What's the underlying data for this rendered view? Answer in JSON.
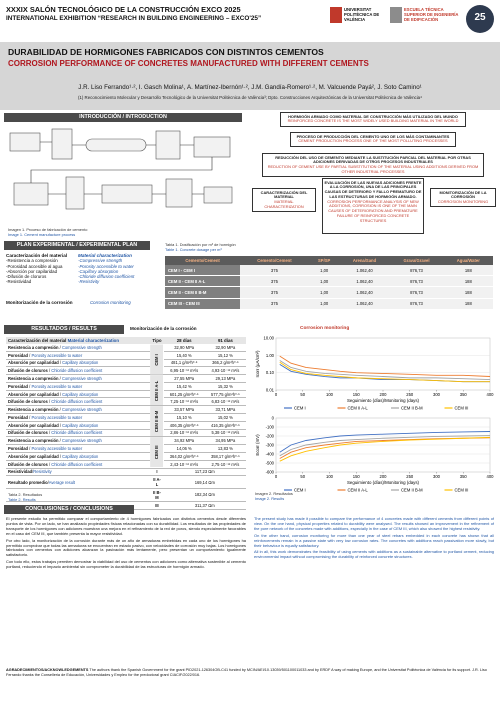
{
  "header": {
    "line1": "XXXIX SALÓN TECNOLÓGICO DE LA CONSTRUCCIÓN EXCO 2025",
    "line2": "INTERNATIONAL EXHIBITION “RESEARCH IN BUILDING ENGINEERING – EXCO'25”",
    "logo_upv": "UNIVERSITAT POLITÈCNICA DE VALÈNCIA",
    "logo_school": "ESCUELA TÉCNICA SUPERIOR DE INGENIERÍA DE EDIFICACIÓN",
    "logo_badge": "25"
  },
  "title": {
    "es": "DURABILIDAD DE HORMIGONES FABRICADOS CON DISTINTOS CEMENTOS",
    "en": "CORROSION PERFORMANCE OF CONCRETES MANUFACTURED WITH DIFFERENT CEMENTS"
  },
  "authors": "J.R. Liso Ferrando¹·², I. Gasch Molina¹, A. Martínez-Ibernón¹·², J.M. Gandía-Romero¹·², M. Valcuende Payá², J. Soto Camino¹",
  "affiliations": "(1) Reconocimiento Molecular y Desarrollo Tecnológico de la Universitat Politècnica de València³; Dpto. Construcciones Arquitectónicas de la Universitat Politècnica de València⁴",
  "introduction": {
    "heading": "INTRODUCCIÓN / INTRODUCTION",
    "caption_es": "Imagen 1. Proceso de fabricación de cemento",
    "caption_en": "Image 1. Cement manufacture process",
    "flow": [
      {
        "es": "HORMIGÓN ARMADO COMO MATERIAL DE CONSTRUCCIÓN MÁS UTILIZADO DEL MUNDO",
        "en": "REINFORCED CONCRETE IS THE MOST WIDELY USED BUILDING MATERIAL IN THE WORLD"
      },
      {
        "es": "PROCESO DE PRODUCCIÓN DEL CEMENTO UNO DE LOS MÁS CONTAMINANTES",
        "en": "CEMENT PRODUCTION PROCESS ONE OF THE MOST POLLUTING PROCESSES"
      },
      {
        "es": "REDUCCIÓN DEL USO DE CEMENTO MEDIANTE LA SUSTITUCIÓN PARCIAL DEL MATERIAL POR OTRAS ADICIONES DERIVADAS DE OTROS PROCESOS INDUSTRIALES",
        "en": "REDUCTION OF CEMENT USE BY PARTIAL SUBSTITUTION OF THE MATERIAL USING ADDITIONS DERIVED FROM OTHER INDUSTRIAL PROCESSES"
      },
      {
        "es": "EVALUACIÓN DE LAS NUEVAS ADICIONES FRENTE A LA CORROSIÓN, UNA DE LAS PRINCIPALES CAUSAS DE DETERIORO Y FALLO PREMATURO DE LAS ESTRUCTURAS DE HORMIGÓN ARMADO.",
        "en": "CORROSION PERFORMANCE ANALYSIS OF NEW ADDITIONS, CORROSION IS ONE OF THE MAIN CAUSES OF DETERIORATION AND PREMATURE FAILURE OF REINFORCED CONCRETE STRUCTURES"
      }
    ],
    "branch_left": {
      "es": "CARACTERIZACIÓN DEL MATERIAL",
      "en": "MATERIAL CHARACTERIZATION"
    },
    "branch_right": {
      "es": "MONITORIZACIÓN DE LA CORROSIÓN",
      "en": "CORROSION MONITORING"
    }
  },
  "plan": {
    "heading": "PLAN EXPERIMENTAL / EXPERIMENTAL PLAN",
    "char_title_es": "Caracterización del material",
    "char_title_en": "Material characterization",
    "items_es": [
      "-Resistencia a compresión",
      "-Porosidad accesible al agua",
      "-Absorción por capilaridad",
      "-Difusión de cloruros",
      "-Resistividad"
    ],
    "items_en": [
      "-Compressive strength",
      "-Porosity accessible to water",
      "-Capillary absorption",
      "-Chloride diffusion coefficient",
      "-Resistivity"
    ],
    "monitoring_es": "Monitorización de la corrosión",
    "monitoring_en": "Corrosion monitoring",
    "table": {
      "caption_es": "Tabla 1. Dosificación por m³ de hormigón",
      "caption_en": "Table 1. Concrete dosage per m³",
      "columns": [
        "Cemento/Cement",
        "Cemento/Cement",
        "SP/SP",
        "Arena/Sand",
        "Grava/Gravel",
        "Agua/Water"
      ],
      "rows": [
        [
          "CEM I - CEM I",
          "375",
          "1,00",
          "1.062,40",
          "876,73",
          "188"
        ],
        [
          "CEM II - CEM II A-L",
          "375",
          "1,00",
          "1.062,40",
          "876,73",
          "188"
        ],
        [
          "CEM II - CEM II B-M",
          "375",
          "1,00",
          "1.062,40",
          "876,73",
          "188"
        ],
        [
          "CEM III - CEM III",
          "375",
          "1,00",
          "1.062,40",
          "876,73",
          "188"
        ]
      ]
    }
  },
  "results": {
    "heading": "RESULTADOS / RESULTS",
    "table": {
      "head_es": "Caracterización del material",
      "head_en": "Material characterization",
      "col_type": "Tipo",
      "col_28": "28 días",
      "col_91": "91 días",
      "groups": [
        {
          "type": "CEM I",
          "rows": [
            {
              "es": "Resistencia a compresión",
              "en": "Compressive strength",
              "d28": "32,90 MPa",
              "d91": "32,90 MPa"
            },
            {
              "es": "Porosidad",
              "en": "Porosity accessible to water",
              "d28": "15,40 %",
              "d91": "15,12 %"
            },
            {
              "es": "Absorción por capilaridad",
              "en": "Capillary absorption",
              "d28": "481,1 g/m²h⁰·⁵",
              "d91": "366,2 g/m²h⁰·⁵"
            },
            {
              "es": "Difusión de cloruros",
              "en": "Chloride diffusion coefficient",
              "d28": "6,95·10⁻¹² m²/s",
              "d91": "4,93·10⁻¹² m²/s"
            }
          ]
        },
        {
          "type": "CEM II A-L",
          "rows": [
            {
              "es": "Resistencia a compresión",
              "en": "Compressive strength",
              "d28": "27,55 MPa",
              "d91": "29,13 MPa"
            },
            {
              "es": "Porosidad",
              "en": "Porosity accessible to water",
              "d28": "15,42 %",
              "d91": "15,32 %"
            },
            {
              "es": "Absorción por capilaridad",
              "en": "Capillary absorption",
              "d28": "601,25 g/m²h⁰·⁵",
              "d91": "577,75 g/m²h⁰·⁵"
            },
            {
              "es": "Difusión de cloruros",
              "en": "Chloride diffusion coefficient",
              "d28": "7,25·10⁻¹² m²/s",
              "d91": "6,83·10⁻¹² m²/s"
            }
          ]
        },
        {
          "type": "CEM II B-M",
          "rows": [
            {
              "es": "Resistencia a compresión",
              "en": "Compressive strength",
              "d28": "33,57 MPa",
              "d91": "33,71 MPa"
            },
            {
              "es": "Porosidad",
              "en": "Porosity accessible to water",
              "d28": "15,10 %",
              "d91": "15,02 %"
            },
            {
              "es": "Absorción por capilaridad",
              "en": "Capillary absorption",
              "d28": "406,35 g/m²h⁰·⁵",
              "d91": "416,35 g/m²h⁰·⁵"
            },
            {
              "es": "Difusión de cloruros",
              "en": "Chloride diffusion coefficient",
              "d28": "2,86·10⁻¹² m²/s",
              "d91": "5,38·10⁻¹² m²/s"
            }
          ]
        },
        {
          "type": "CEM III",
          "rows": [
            {
              "es": "Resistencia a compresión",
              "en": "Compressive strength",
              "d28": "34,92 MPa",
              "d91": "34,95 MPa"
            },
            {
              "es": "Porosidad",
              "en": "Porosity accessible to water",
              "d28": "14,06 %",
              "d91": "13,83 %"
            },
            {
              "es": "Absorción por capilaridad",
              "en": "Capillary absorption",
              "d28": "364,02 g/m²h⁰·⁵",
              "d91": "358,17 g/m²h⁰·⁵"
            },
            {
              "es": "Difusión de cloruros",
              "en": "Chloride diffusion coefficient",
              "d28": "2,43·10⁻¹² m²/s",
              "d91": "2,75·10⁻¹² m²/s"
            }
          ]
        }
      ],
      "resistivity_es": "Resistividad",
      "resistivity_en": "Resistivity",
      "average_es": "Resultado promedio",
      "average_en": "Average result",
      "resistivity": [
        {
          "type": "I",
          "value": "117,23 Ωm"
        },
        {
          "type": "II A-L",
          "value": "169,14 Ωm"
        },
        {
          "type": "II B-M",
          "value": "182,34 Ωm"
        },
        {
          "type": "III",
          "value": "311,37 Ωm"
        }
      ]
    },
    "table_caption_es": "Tabla 2. Resultados",
    "table_caption_en": "Table 2. Results",
    "monitoring_es": "Monitorización de la corrosión",
    "monitoring_en": "Corrosion monitoring",
    "image_caption_es": "Imagen 2. Resultados",
    "image_caption_en": "Image 2. Results",
    "charts": [
      {
        "type": "line",
        "y_label": "Icorr (µA/cm²)",
        "x_label": "Seguimiento (días)/Monitoring (days)",
        "log_y": true,
        "grid": true,
        "x": [
          7,
          28,
          56,
          91,
          120,
          150,
          200,
          250,
          300,
          350,
          400
        ],
        "xlim": [
          0,
          400
        ],
        "xticks": [
          0,
          50,
          100,
          150,
          200,
          250,
          300,
          350,
          400
        ],
        "ylim": [
          0.01,
          10
        ],
        "yticks": [
          {
            "value": 0.01,
            "label": "0.01"
          },
          {
            "value": 0.1,
            "label": "0.10"
          },
          {
            "value": 1,
            "label": "1.00"
          },
          {
            "value": 10,
            "label": "10.00"
          }
        ],
        "series": [
          {
            "name": "CEM I",
            "color": "#4472c4",
            "values": [
              0.3,
              0.12,
              0.08,
              0.06,
              0.05,
              0.05,
              0.04,
              0.04,
              0.035,
              0.03,
              0.03
            ]
          },
          {
            "name": "CEM II A-L",
            "color": "#ed7d31",
            "values": [
              0.9,
              0.35,
              0.2,
              0.15,
              0.12,
              0.1,
              0.09,
              0.08,
              0.07,
              0.07,
              0.06
            ]
          },
          {
            "name": "CEM II B-M",
            "color": "#a5a5a5",
            "values": [
              0.5,
              0.2,
              0.12,
              0.09,
              0.08,
              0.07,
              0.06,
              0.05,
              0.05,
              0.045,
              0.04
            ]
          },
          {
            "name": "CEM III",
            "color": "#ffc000",
            "values": [
              0.4,
              0.15,
              0.09,
              0.07,
              0.06,
              0.05,
              0.045,
              0.04,
              0.035,
              0.03,
              0.03
            ]
          }
        ]
      },
      {
        "type": "line",
        "y_label": "Ecorr (mV)",
        "x_label": "Seguimiento (días)/Monitoring (days)",
        "log_y": false,
        "grid": true,
        "x": [
          7,
          28,
          56,
          91,
          120,
          150,
          200,
          250,
          300,
          350,
          400
        ],
        "xlim": [
          0,
          400
        ],
        "xticks": [
          0,
          50,
          100,
          150,
          200,
          250,
          300,
          350,
          400
        ],
        "ylim": [
          -600,
          0
        ],
        "yticks": [
          -600,
          -500,
          -400,
          -300,
          -200,
          -100,
          0
        ],
        "series": [
          {
            "name": "CEM I",
            "color": "#4472c4",
            "values": [
              -380,
              -300,
              -250,
              -220,
              -200,
              -190,
              -180,
              -170,
              -160,
              -155,
              -150
            ]
          },
          {
            "name": "CEM II A-L",
            "color": "#ed7d31",
            "values": [
              -450,
              -380,
              -330,
              -300,
              -280,
              -260,
              -250,
              -240,
              -230,
              -225,
              -220
            ]
          },
          {
            "name": "CEM II B-M",
            "color": "#a5a5a5",
            "values": [
              -420,
              -350,
              -300,
              -270,
              -250,
              -240,
              -225,
              -215,
              -205,
              -200,
              -195
            ]
          },
          {
            "name": "CEM III",
            "color": "#ffc000",
            "values": [
              -480,
              -420,
              -370,
              -330,
              -300,
              -280,
              -260,
              -245,
              -235,
              -225,
              -215
            ]
          }
        ]
      }
    ]
  },
  "conclusions": {
    "heading": "CONCLUSIONES / CONCLUSIONS",
    "es": [
      "El presente estudio ha permitido comparar el comportamiento de 4 hormigones fabricados con distintos cementos desde diferentes puntos de vista. Por un lado, se han analizado propiedades físicas relacionadas con su durabilidad. Los resultados de las propiedades de transporte de los hormigones con adiciones muestran una mejora en el refinamiento de la red de poros, siendo especialmente favorables en el caso del CEM III, que también presenta la mayor resistividad.",
      "Por otro lado, la monitorización de la corrosión durante más de un año de armaduras embebidas en cada uno de los hormigones ha permitido comprobar que todas las armaduras se encuentran en estado pasivo, con velocidades de corrosión muy bajas. Los hormigones fabricados con cementos con adiciones alcanzan la pasivación más lentamente, pero presentan un comportamiento igualmente satisfactorio.",
      "Con todo ello, estos trabajos permiten demostrar la viabilidad del uso de cementos con adiciones como alternativa sostenible al cemento portland, reduciendo el impacto ambiental sin comprometer la durabilidad de las estructuras de hormigón armado."
    ],
    "en": [
      "The present study has made it possible to compare the performance of 4 concretes made with different cements from different points of view. On the one hand, physical properties related to durability were analysed. The results showed an improvement in the refinement of the pore network of the concretes made with additions, especially in the case of CEM III, which also showed the highest resistivity.",
      "On the other hand, corrosion monitoring for more than one year of steel rebars embedded in each concrete has shown that all reinforcements remain in a passive state with very low corrosion rates. The concretes with additions reach passivation more slowly, but their behaviour is equally satisfactory.",
      "All in all, this work demonstrates the feasibility of using cements with additions as a sustainable alternative to portland cement, reducing environmental impact without compromising the durability of reinforced concrete structures."
    ]
  },
  "acknowledgements": {
    "title": "AGRADECIMIENTOS/ACKNOWLEDGEMENTS",
    "text": "The authors thank the Spanish Government for the grant PID2021-126304OB-C41 funded by MCIN/AEI/10.13039/501100011033 and by ERDF A way of making Europe, and the Universitat Politècnica de València for its support. J.R. Liso Ferrando thanks the Conselleria de Educación, Universidades y Empleo for the predoctoral grant CIACIF/2022/016."
  }
}
